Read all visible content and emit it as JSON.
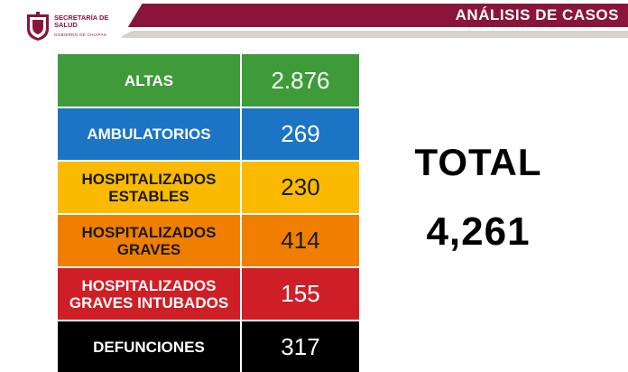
{
  "header": {
    "title": "ANÁLISIS DE CASOS",
    "org_name": "SECRETARÍA DE SALUD",
    "org_sub": "GOBIERNO DE CHIAPAS",
    "brand_color": "#8a1538"
  },
  "rows": [
    {
      "label": "ALTAS",
      "value": "2.876",
      "color": "#3f9b3a"
    },
    {
      "label": "AMBULATORIOS",
      "value": "269",
      "color": "#1b74c4"
    },
    {
      "label": "HOSPITALIZADOS ESTABLES",
      "value": "230",
      "color": "#fbba00"
    },
    {
      "label": "HOSPITALIZADOS GRAVES",
      "value": "414",
      "color": "#f07f00"
    },
    {
      "label": "HOSPITALIZADOS GRAVES INTUBADOS",
      "value": "155",
      "color": "#cf1f26"
    },
    {
      "label": "DEFUNCIONES",
      "value": "317",
      "color": "#000000"
    }
  ],
  "total": {
    "label": "TOTAL",
    "value": "4,261"
  }
}
